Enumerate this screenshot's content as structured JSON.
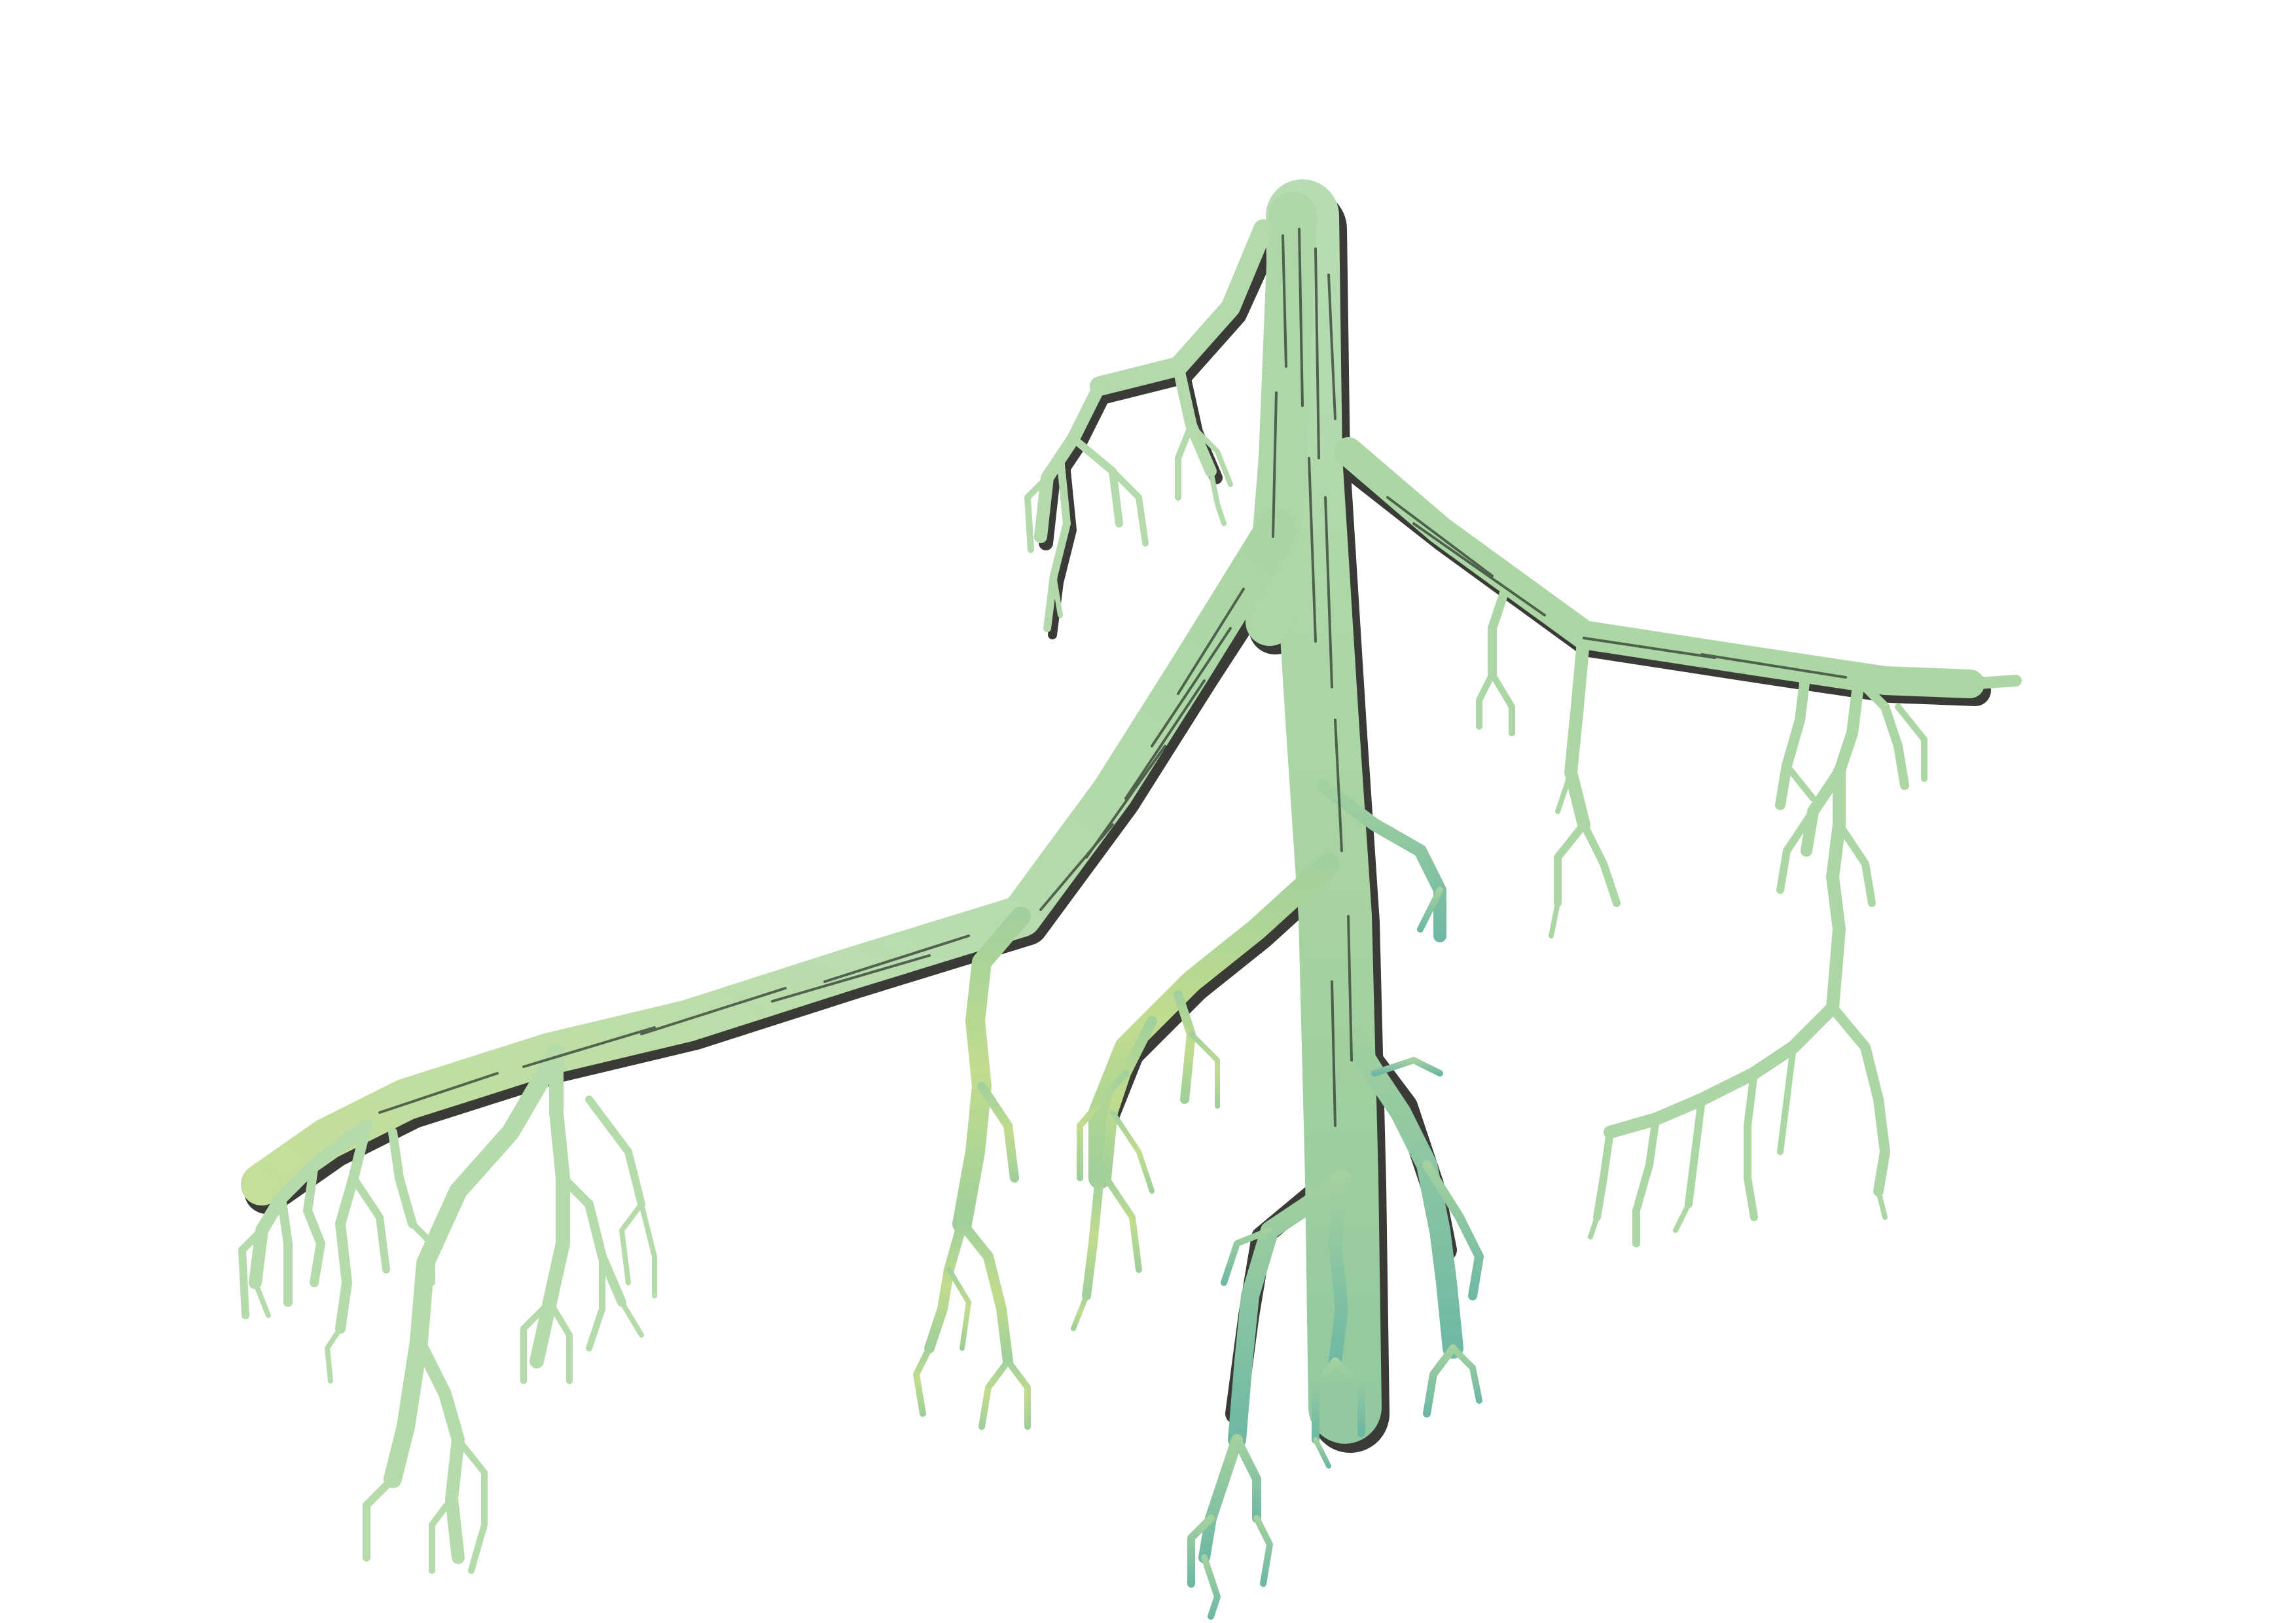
{
  "artwork": {
    "subject": "branching-root-system",
    "palette": {
      "background": "#ffffff",
      "fill_light": "#b9dcb3",
      "fill_mid": "#9fce9a",
      "fill_yellow": "#c2dd8c",
      "fill_teal": "#7fbfa6",
      "outline": "#3a3a36",
      "hatch": "#2f3a2f"
    }
  }
}
